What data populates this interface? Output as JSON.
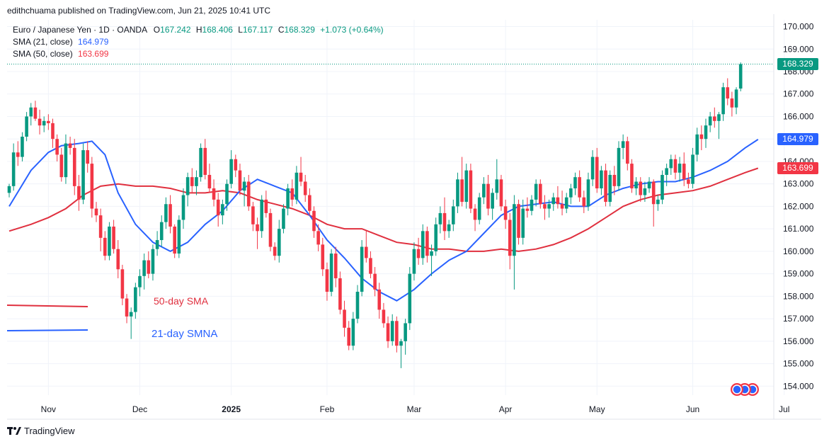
{
  "header": {
    "publisher": "edithchuama published on TradingView.com, Jun 21, 2025 10:41 UTC",
    "symbol": "Euro / Japanese Yen · 1D · OANDA",
    "o_label": "O",
    "o_value": "167.242",
    "h_label": "H",
    "h_value": "168.406",
    "l_label": "L",
    "l_value": "167.117",
    "c_label": "C",
    "c_value": "168.329",
    "change": "+1.073 (+0.64%)",
    "sma21_label": "SMA (21, close)",
    "sma21_value": "164.979",
    "sma50_label": "SMA (50, close)",
    "sma50_value": "163.699"
  },
  "footer": {
    "brand": "TradingView"
  },
  "colors": {
    "up": "#089981",
    "down": "#f23645",
    "sma21": "#2962ff",
    "sma50": "#f23645",
    "sma50_line": "#e0303f"
  },
  "chart_data": {
    "type": "candlestick",
    "ylim": [
      153.6,
      170.3
    ],
    "y_ticks": [
      "170.000",
      "169.000",
      "168.000",
      "167.000",
      "166.000",
      "165.000",
      "164.000",
      "163.000",
      "162.000",
      "161.000",
      "160.000",
      "159.000",
      "158.000",
      "157.000",
      "156.000",
      "155.000",
      "154.000"
    ],
    "x_ticks": [
      {
        "label": "Nov",
        "idx": 9
      },
      {
        "label": "Dec",
        "idx": 30
      },
      {
        "label": "2025",
        "idx": 51
      },
      {
        "label": "Feb",
        "idx": 73
      },
      {
        "label": "Mar",
        "idx": 93
      },
      {
        "label": "Apr",
        "idx": 114
      },
      {
        "label": "May",
        "idx": 135
      },
      {
        "label": "Jun",
        "idx": 157
      },
      {
        "label": "Jul",
        "idx": 178
      }
    ],
    "price_labels": [
      {
        "name": "last-price",
        "value": 168.329,
        "text": "168.329",
        "color": "#089981"
      },
      {
        "name": "sma21-value",
        "value": 164.979,
        "text": "164.979",
        "color": "#2962ff"
      },
      {
        "name": "sma50-value",
        "value": 163.699,
        "text": "163.699",
        "color": "#f23645"
      }
    ],
    "annotations": [
      {
        "name": "legend-50-sma",
        "text": "50-day SMA",
        "color": "#e0303f"
      },
      {
        "name": "legend-21-smna",
        "text": "21-day SMNA",
        "color": "#2962ff"
      }
    ],
    "candles": [
      [
        162.6,
        163.0,
        162.4,
        162.9
      ],
      [
        162.9,
        164.8,
        162.7,
        164.4
      ],
      [
        164.4,
        164.9,
        163.8,
        164.2
      ],
      [
        164.2,
        165.3,
        164.0,
        165.1
      ],
      [
        165.1,
        166.2,
        164.9,
        166.0
      ],
      [
        166.0,
        166.6,
        165.6,
        166.4
      ],
      [
        166.4,
        166.7,
        165.8,
        165.9
      ],
      [
        165.9,
        166.3,
        165.2,
        165.6
      ],
      [
        165.6,
        166.0,
        165.3,
        165.8
      ],
      [
        165.8,
        166.1,
        165.4,
        165.7
      ],
      [
        165.7,
        165.9,
        164.6,
        165.0
      ],
      [
        165.0,
        165.2,
        164.0,
        164.3
      ],
      [
        164.3,
        164.6,
        163.1,
        163.3
      ],
      [
        163.3,
        165.2,
        163.0,
        164.8
      ],
      [
        164.8,
        165.1,
        164.3,
        164.6
      ],
      [
        164.6,
        165.0,
        162.5,
        162.9
      ],
      [
        162.9,
        163.4,
        161.8,
        162.3
      ],
      [
        162.3,
        164.8,
        162.1,
        164.5
      ],
      [
        164.5,
        164.9,
        163.5,
        163.9
      ],
      [
        163.9,
        164.2,
        161.5,
        161.9
      ],
      [
        161.9,
        162.2,
        161.3,
        161.6
      ],
      [
        161.6,
        161.9,
        160.0,
        160.6
      ],
      [
        160.6,
        160.9,
        159.6,
        159.8
      ],
      [
        159.8,
        161.3,
        159.6,
        161.1
      ],
      [
        161.1,
        161.4,
        159.9,
        160.1
      ],
      [
        160.1,
        160.5,
        158.8,
        159.2
      ],
      [
        159.2,
        159.4,
        157.6,
        157.9
      ],
      [
        157.9,
        158.1,
        156.8,
        157.1
      ],
      [
        157.1,
        157.5,
        156.1,
        157.3
      ],
      [
        157.3,
        158.6,
        157.0,
        158.4
      ],
      [
        158.4,
        159.2,
        158.0,
        158.9
      ],
      [
        158.9,
        159.9,
        158.3,
        159.6
      ],
      [
        159.6,
        160.0,
        158.8,
        159.0
      ],
      [
        159.0,
        160.3,
        158.7,
        160.1
      ],
      [
        160.1,
        160.9,
        159.8,
        160.5
      ],
      [
        160.5,
        161.6,
        160.2,
        161.3
      ],
      [
        161.3,
        162.4,
        161.0,
        162.1
      ],
      [
        162.1,
        162.5,
        160.8,
        161.1
      ],
      [
        161.1,
        161.2,
        159.7,
        159.9
      ],
      [
        159.9,
        161.6,
        159.7,
        161.4
      ],
      [
        161.4,
        162.8,
        161.0,
        162.5
      ],
      [
        162.5,
        163.5,
        162.0,
        163.3
      ],
      [
        163.3,
        163.7,
        162.6,
        162.9
      ],
      [
        162.9,
        163.6,
        162.5,
        163.3
      ],
      [
        163.3,
        164.8,
        163.1,
        164.6
      ],
      [
        164.6,
        165.0,
        163.2,
        163.4
      ],
      [
        163.4,
        163.9,
        162.6,
        162.8
      ],
      [
        162.8,
        163.2,
        162.0,
        162.3
      ],
      [
        162.3,
        162.6,
        161.1,
        161.6
      ],
      [
        161.6,
        162.3,
        161.2,
        162.1
      ],
      [
        162.1,
        163.2,
        161.8,
        163.0
      ],
      [
        163.0,
        164.5,
        162.8,
        164.1
      ],
      [
        164.1,
        164.3,
        163.3,
        163.6
      ],
      [
        163.6,
        163.9,
        162.5,
        162.7
      ],
      [
        162.7,
        163.3,
        162.0,
        163.1
      ],
      [
        163.1,
        163.4,
        161.8,
        162.0
      ],
      [
        162.0,
        162.2,
        160.9,
        161.2
      ],
      [
        161.2,
        161.5,
        160.1,
        160.9
      ],
      [
        160.9,
        162.5,
        160.6,
        162.3
      ],
      [
        162.3,
        162.7,
        161.5,
        161.7
      ],
      [
        161.7,
        161.9,
        160.0,
        160.2
      ],
      [
        160.2,
        160.4,
        159.6,
        159.8
      ],
      [
        159.8,
        161.4,
        159.5,
        161.0
      ],
      [
        161.0,
        162.1,
        160.8,
        161.9
      ],
      [
        161.9,
        163.0,
        161.6,
        162.8
      ],
      [
        162.8,
        163.2,
        162.0,
        162.3
      ],
      [
        162.3,
        163.8,
        162.1,
        163.5
      ],
      [
        163.5,
        164.2,
        162.9,
        163.1
      ],
      [
        163.1,
        163.4,
        162.2,
        162.5
      ],
      [
        162.5,
        162.8,
        161.6,
        161.8
      ],
      [
        161.8,
        162.0,
        160.6,
        160.9
      ],
      [
        160.9,
        161.2,
        160.0,
        160.3
      ],
      [
        160.3,
        160.6,
        158.9,
        159.2
      ],
      [
        159.2,
        159.5,
        157.8,
        158.2
      ],
      [
        158.2,
        160.1,
        158.0,
        159.9
      ],
      [
        159.9,
        160.2,
        158.4,
        158.8
      ],
      [
        158.8,
        159.1,
        157.2,
        157.4
      ],
      [
        157.4,
        157.8,
        156.2,
        156.6
      ],
      [
        156.6,
        156.9,
        155.6,
        155.8
      ],
      [
        155.8,
        157.3,
        155.6,
        157.0
      ],
      [
        157.0,
        158.5,
        156.8,
        158.2
      ],
      [
        158.2,
        160.5,
        158.0,
        160.2
      ],
      [
        160.2,
        160.9,
        159.5,
        159.7
      ],
      [
        159.7,
        160.0,
        158.8,
        159.0
      ],
      [
        159.0,
        159.3,
        158.0,
        158.3
      ],
      [
        158.3,
        158.6,
        157.0,
        157.4
      ],
      [
        157.4,
        157.7,
        156.6,
        156.8
      ],
      [
        156.8,
        157.1,
        155.7,
        156.0
      ],
      [
        156.0,
        157.2,
        155.8,
        156.9
      ],
      [
        156.9,
        157.1,
        155.5,
        155.8
      ],
      [
        155.8,
        156.1,
        154.8,
        156.0
      ],
      [
        156.0,
        157.0,
        155.4,
        156.8
      ],
      [
        156.8,
        159.3,
        156.5,
        159.0
      ],
      [
        159.0,
        160.4,
        158.7,
        160.1
      ],
      [
        160.1,
        160.6,
        159.4,
        159.7
      ],
      [
        159.7,
        161.2,
        159.4,
        160.9
      ],
      [
        160.9,
        161.1,
        159.5,
        159.8
      ],
      [
        159.8,
        160.3,
        158.9,
        160.0
      ],
      [
        160.0,
        161.5,
        159.8,
        161.2
      ],
      [
        161.2,
        162.0,
        160.8,
        161.7
      ],
      [
        161.7,
        162.4,
        160.5,
        160.9
      ],
      [
        160.9,
        161.4,
        160.6,
        161.2
      ],
      [
        161.2,
        162.3,
        160.9,
        162.0
      ],
      [
        162.0,
        163.5,
        161.7,
        163.2
      ],
      [
        163.2,
        164.2,
        162.0,
        162.2
      ],
      [
        162.2,
        163.9,
        161.9,
        163.6
      ],
      [
        163.6,
        163.9,
        161.7,
        161.9
      ],
      [
        161.9,
        162.1,
        160.9,
        161.4
      ],
      [
        161.4,
        162.6,
        161.2,
        162.4
      ],
      [
        162.4,
        163.3,
        162.1,
        163.0
      ],
      [
        163.0,
        163.4,
        161.6,
        161.9
      ],
      [
        161.9,
        162.8,
        161.4,
        162.6
      ],
      [
        162.6,
        164.1,
        162.3,
        163.2
      ],
      [
        163.2,
        163.4,
        161.8,
        162.0
      ],
      [
        162.0,
        162.3,
        161.0,
        161.4
      ],
      [
        161.4,
        161.7,
        159.2,
        159.8
      ],
      [
        159.8,
        162.5,
        158.3,
        162.1
      ],
      [
        162.1,
        162.3,
        160.3,
        160.6
      ],
      [
        160.6,
        162.3,
        160.3,
        161.9
      ],
      [
        161.9,
        162.4,
        161.5,
        161.8
      ],
      [
        161.8,
        162.5,
        161.6,
        162.3
      ],
      [
        162.3,
        163.2,
        162.0,
        163.0
      ],
      [
        163.0,
        163.2,
        161.9,
        162.1
      ],
      [
        162.1,
        162.5,
        161.4,
        161.9
      ],
      [
        161.9,
        162.3,
        161.5,
        162.1
      ],
      [
        162.1,
        162.6,
        161.8,
        162.4
      ],
      [
        162.4,
        162.9,
        161.9,
        162.1
      ],
      [
        162.1,
        162.7,
        161.6,
        161.9
      ],
      [
        161.9,
        162.6,
        161.7,
        162.4
      ],
      [
        162.4,
        163.0,
        162.1,
        162.8
      ],
      [
        162.8,
        163.5,
        162.5,
        163.3
      ],
      [
        163.3,
        163.6,
        162.2,
        162.4
      ],
      [
        162.4,
        162.7,
        161.7,
        162.0
      ],
      [
        162.0,
        163.5,
        161.8,
        163.2
      ],
      [
        163.2,
        164.5,
        162.9,
        164.2
      ],
      [
        164.2,
        164.6,
        162.6,
        162.8
      ],
      [
        162.8,
        163.8,
        162.5,
        163.6
      ],
      [
        163.6,
        163.9,
        162.0,
        162.2
      ],
      [
        162.2,
        163.6,
        162.0,
        163.4
      ],
      [
        163.4,
        163.8,
        162.5,
        162.9
      ],
      [
        162.9,
        164.9,
        162.7,
        164.6
      ],
      [
        164.6,
        165.2,
        164.1,
        164.9
      ],
      [
        164.9,
        165.1,
        163.6,
        163.9
      ],
      [
        163.9,
        164.1,
        162.6,
        162.8
      ],
      [
        162.8,
        163.3,
        162.5,
        163.1
      ],
      [
        163.1,
        163.3,
        162.2,
        162.5
      ],
      [
        162.5,
        163.1,
        162.2,
        162.8
      ],
      [
        162.8,
        163.3,
        162.6,
        163.1
      ],
      [
        163.1,
        163.2,
        161.1,
        162.1
      ],
      [
        162.1,
        162.5,
        161.8,
        162.3
      ],
      [
        162.3,
        163.6,
        162.1,
        163.4
      ],
      [
        163.4,
        163.9,
        162.9,
        163.7
      ],
      [
        163.7,
        164.3,
        163.4,
        164.1
      ],
      [
        164.1,
        164.3,
        163.2,
        163.5
      ],
      [
        163.5,
        164.2,
        163.1,
        163.9
      ],
      [
        163.9,
        164.4,
        162.9,
        163.2
      ],
      [
        163.2,
        163.5,
        162.8,
        163.0
      ],
      [
        163.0,
        164.6,
        162.8,
        164.3
      ],
      [
        164.3,
        165.5,
        164.0,
        165.2
      ],
      [
        165.2,
        165.6,
        164.5,
        165.0
      ],
      [
        165.0,
        165.9,
        164.6,
        165.6
      ],
      [
        165.6,
        166.2,
        165.3,
        166.0
      ],
      [
        166.0,
        166.4,
        165.5,
        165.8
      ],
      [
        165.8,
        166.2,
        165.0,
        166.1
      ],
      [
        166.1,
        167.5,
        165.8,
        167.3
      ],
      [
        167.3,
        167.7,
        166.5,
        166.8
      ],
      [
        166.8,
        167.1,
        166.0,
        166.4
      ],
      [
        166.4,
        167.3,
        166.1,
        167.2
      ],
      [
        167.242,
        168.406,
        167.117,
        168.329
      ]
    ],
    "sma21": [
      [
        0,
        162.0
      ],
      [
        5,
        163.6
      ],
      [
        9,
        164.4
      ],
      [
        12,
        164.7
      ],
      [
        16,
        164.8
      ],
      [
        19,
        164.9
      ],
      [
        22,
        164.3
      ],
      [
        25,
        162.6
      ],
      [
        29,
        161.2
      ],
      [
        33,
        160.4
      ],
      [
        37,
        160.0
      ],
      [
        41,
        160.4
      ],
      [
        45,
        161.2
      ],
      [
        49,
        161.8
      ],
      [
        53,
        162.7
      ],
      [
        57,
        163.2
      ],
      [
        61,
        162.9
      ],
      [
        65,
        162.6
      ],
      [
        69,
        161.6
      ],
      [
        73,
        160.5
      ],
      [
        77,
        159.7
      ],
      [
        81,
        158.8
      ],
      [
        85,
        158.2
      ],
      [
        89,
        157.8
      ],
      [
        93,
        158.3
      ],
      [
        97,
        159.0
      ],
      [
        101,
        159.6
      ],
      [
        105,
        160.0
      ],
      [
        109,
        160.8
      ],
      [
        113,
        161.6
      ],
      [
        117,
        162.0
      ],
      [
        121,
        162.1
      ],
      [
        125,
        162.2
      ],
      [
        129,
        162.0
      ],
      [
        133,
        162.0
      ],
      [
        137,
        162.5
      ],
      [
        141,
        162.8
      ],
      [
        145,
        163.0
      ],
      [
        149,
        163.1
      ],
      [
        153,
        163.1
      ],
      [
        157,
        163.3
      ],
      [
        161,
        163.6
      ],
      [
        165,
        164.0
      ],
      [
        169,
        164.6
      ],
      [
        172,
        164.979
      ]
    ],
    "sma50": [
      [
        0,
        160.9
      ],
      [
        5,
        161.2
      ],
      [
        9,
        161.5
      ],
      [
        13,
        161.9
      ],
      [
        17,
        162.5
      ],
      [
        21,
        162.9
      ],
      [
        25,
        163.0
      ],
      [
        29,
        162.9
      ],
      [
        33,
        162.9
      ],
      [
        37,
        162.8
      ],
      [
        41,
        162.6
      ],
      [
        45,
        162.6
      ],
      [
        49,
        162.7
      ],
      [
        53,
        162.6
      ],
      [
        57,
        162.3
      ],
      [
        61,
        162.1
      ],
      [
        65,
        161.9
      ],
      [
        69,
        161.6
      ],
      [
        73,
        161.2
      ],
      [
        77,
        161.0
      ],
      [
        81,
        161.0
      ],
      [
        85,
        160.7
      ],
      [
        89,
        160.4
      ],
      [
        93,
        160.3
      ],
      [
        97,
        160.1
      ],
      [
        101,
        160.1
      ],
      [
        105,
        160.0
      ],
      [
        109,
        160.0
      ],
      [
        113,
        160.1
      ],
      [
        117,
        160.0
      ],
      [
        121,
        160.1
      ],
      [
        125,
        160.3
      ],
      [
        129,
        160.6
      ],
      [
        133,
        161.0
      ],
      [
        137,
        161.5
      ],
      [
        141,
        162.0
      ],
      [
        145,
        162.3
      ],
      [
        149,
        162.5
      ],
      [
        153,
        162.6
      ],
      [
        157,
        162.7
      ],
      [
        161,
        162.9
      ],
      [
        165,
        163.2
      ],
      [
        169,
        163.5
      ],
      [
        172,
        163.699
      ]
    ]
  }
}
